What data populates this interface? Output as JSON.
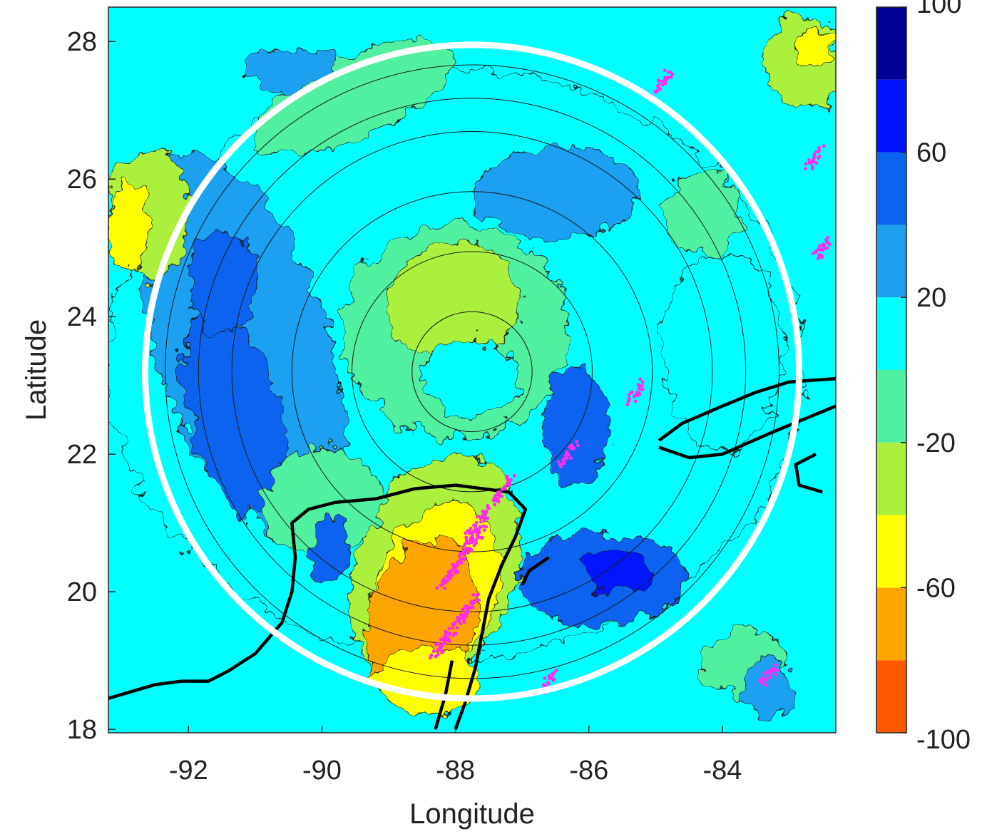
{
  "chart_data": {
    "type": "heatmap",
    "subtype": "filled-contour map",
    "xlabel": "Longitude",
    "ylabel": "Latitude",
    "xlim": [
      -93.2,
      -82.3
    ],
    "ylim": [
      17.95,
      28.5
    ],
    "x_ticks": [
      -92,
      -90,
      -88,
      -86,
      -84
    ],
    "y_ticks": [
      18,
      20,
      22,
      24,
      26,
      28
    ],
    "colorbar": {
      "range": [
        -100,
        100
      ],
      "tick_values": [
        -100,
        -60,
        -20,
        20,
        60,
        100
      ],
      "levels": [
        -100,
        -80,
        -60,
        -40,
        -20,
        0,
        20,
        40,
        60,
        80,
        100
      ],
      "colors": [
        "#ff5a00",
        "#ffa500",
        "#ffff00",
        "#aaf03c",
        "#50f0a0",
        "#00ffff",
        "#1ea0f0",
        "#0a64f0",
        "#0014ff",
        "#000096"
      ]
    },
    "range_rings": {
      "center": [
        -87.75,
        23.2
      ],
      "radii_deg": [
        0.9,
        1.8,
        2.7,
        3.6,
        4.1,
        4.6
      ],
      "outer_circle_radius_deg": 4.9,
      "outer_circle_color": "#ffffff"
    },
    "lightning_points": {
      "color": "#ff2cf0",
      "locations": [
        {
          "lon": -87.5,
          "lat": 21.2
        },
        {
          "lon": -87.9,
          "lat": 20.5
        },
        {
          "lon": -88.0,
          "lat": 19.5
        },
        {
          "lon": -86.3,
          "lat": 22.0
        },
        {
          "lon": -85.3,
          "lat": 22.9
        },
        {
          "lon": -82.5,
          "lat": 25.0
        },
        {
          "lon": -83.3,
          "lat": 18.8
        },
        {
          "lon": -84.9,
          "lat": 27.4
        },
        {
          "lon": -82.6,
          "lat": 26.3
        },
        {
          "lon": -86.6,
          "lat": 18.7
        }
      ]
    }
  }
}
